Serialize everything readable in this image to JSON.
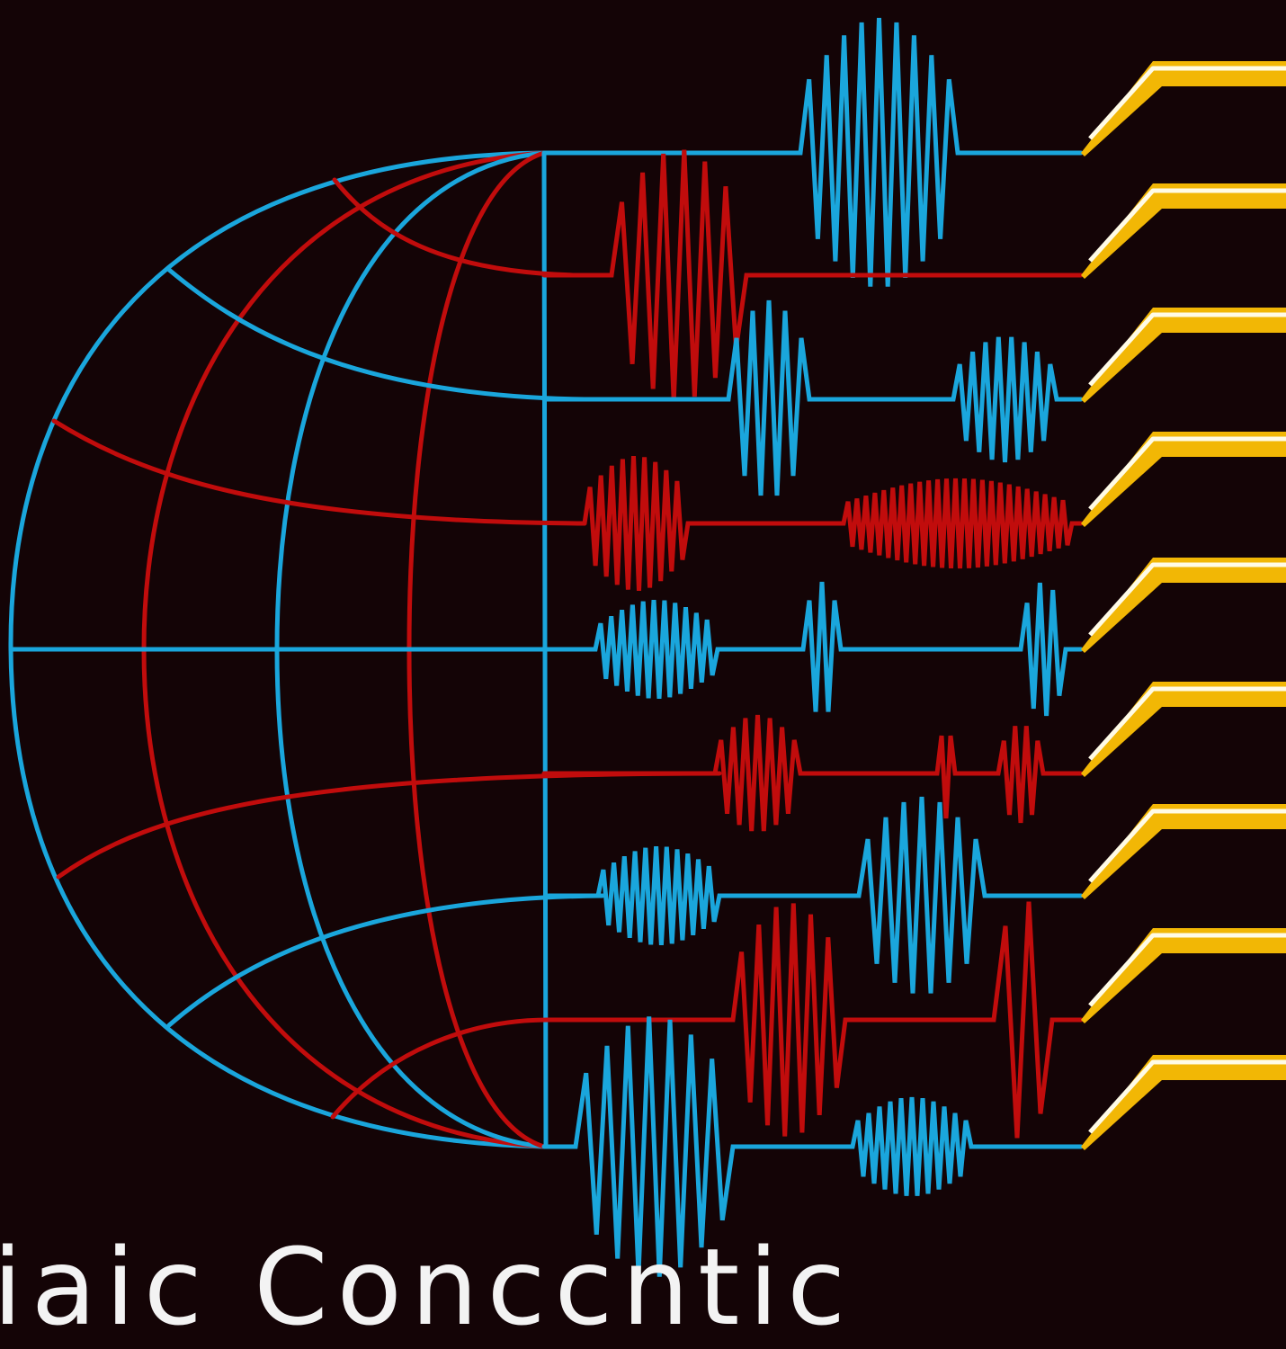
{
  "caption": "iaic Conccntic",
  "colors": {
    "background": "#140406",
    "blue": "#1aa6dc",
    "red": "#c10c0c",
    "gold": "#f2b705",
    "highlight": "#fffbe6",
    "caption": "#f3f3f3"
  },
  "globe": {
    "meridian_count": 5,
    "parallel_count": 9
  },
  "signal_lines": {
    "count": 9,
    "colors_top_to_bottom": [
      "blue",
      "red",
      "blue",
      "red",
      "blue",
      "red",
      "blue",
      "red",
      "blue"
    ]
  },
  "connectors": {
    "count": 9,
    "color": "gold"
  }
}
